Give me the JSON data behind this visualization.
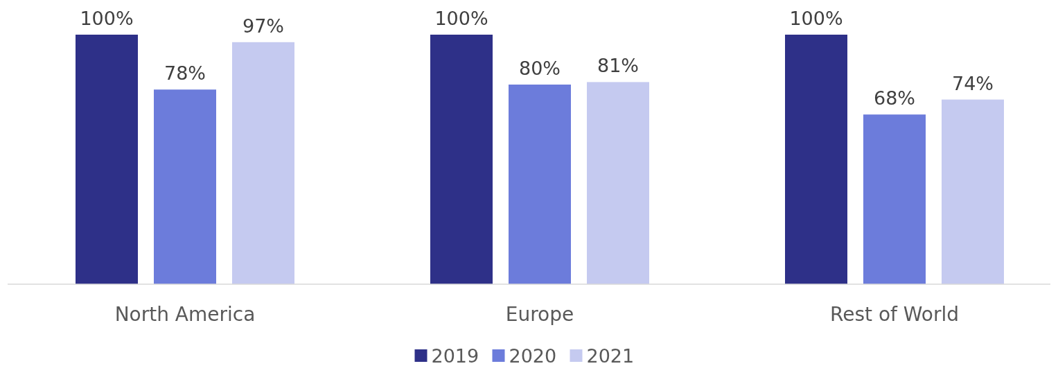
{
  "chart_data": {
    "type": "bar",
    "categories": [
      "North America",
      "Europe",
      "Rest of World"
    ],
    "series": [
      {
        "name": "2019",
        "color": "#2e3088",
        "values": [
          100,
          100,
          100
        ],
        "value_labels": [
          "100%",
          "100%",
          "100%"
        ]
      },
      {
        "name": "2020",
        "color": "#6c7cdb",
        "values": [
          78,
          80,
          68
        ],
        "value_labels": [
          "78%",
          "80%",
          "68%"
        ]
      },
      {
        "name": "2021",
        "color": "#c5caf0",
        "values": [
          97,
          81,
          74
        ],
        "value_labels": [
          "97%",
          "81%",
          "74%"
        ]
      }
    ],
    "legend": "bottom"
  }
}
